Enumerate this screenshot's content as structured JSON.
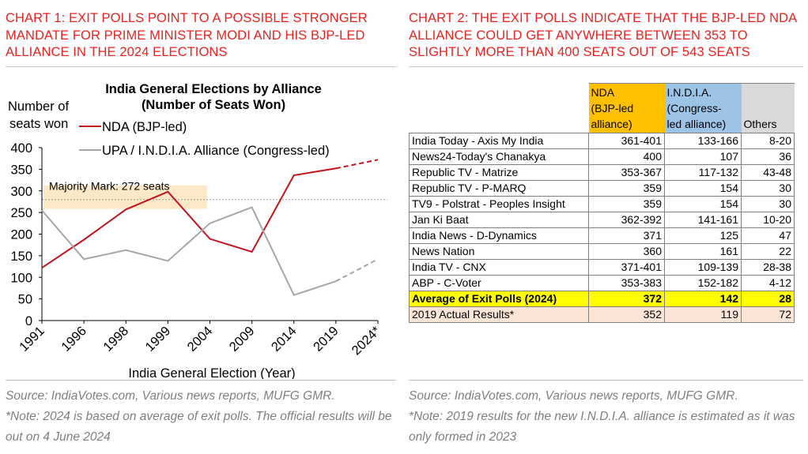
{
  "left": {
    "heading": "CHART 1: EXIT POLLS POINT TO A POSSIBLE STRONGER MANDATE FOR PRIME MINISTER MODI AND HIS BJP-LED ALLIANCE IN THE 2024 ELECTIONS",
    "footer_source": "Source: IndiaVotes.com, Various news reports, MUFG GMR.",
    "footer_note": "*Note: 2024 is based on average of exit polls. The official results will be out on 4 June 2024"
  },
  "right": {
    "heading": "CHART 2: THE EXIT POLLS INDICATE THAT THE BJP-LED NDA ALLIANCE COULD GET ANYWHERE BETWEEN 353 TO SLIGHTLY MORE THAN 400 SEATS OUT OF 543 SEATS",
    "footer_source": "Source: IndiaVotes.com, Various news reports, MUFG GMR.",
    "footer_note": "*Note: 2019 results for the new I.N.D.I.A. alliance is estimated as it was only formed in 2023"
  },
  "colors": {
    "heading_red": "#e8231f",
    "nda_line": "#c0141b",
    "upa_line": "#a6a6a6",
    "majority_band": "#fde9c7",
    "nda_header": "#ffc000",
    "india_header": "#9dc3e6",
    "others_header": "#d9d9d9",
    "average_row": "#ffff00",
    "actual_row": "#fbe5d6"
  },
  "chart_data": [
    {
      "type": "line",
      "title": "India General Elections by Alliance (Number of Seats Won)",
      "title_lines": [
        "India General Elections by Alliance",
        "(Number of Seats Won)"
      ],
      "ylabel_lines": [
        "Number of",
        "seats won"
      ],
      "xlabel": "India General Election (Year)",
      "categories": [
        "1991",
        "1996",
        "1998",
        "1999",
        "2004",
        "2009",
        "2014",
        "2019",
        "2024*"
      ],
      "yticks": [
        "0",
        "50",
        "100",
        "150",
        "200",
        "250",
        "300",
        "350",
        "400"
      ],
      "ylim": [
        0,
        400
      ],
      "grid": false,
      "legend_position": "top",
      "series": [
        {
          "name": "NDA (BJP-led)",
          "values": [
            122,
            187,
            257,
            298,
            189,
            159,
            336,
            352,
            372
          ],
          "color": "#c0141b",
          "dashed_last_segment": true
        },
        {
          "name": "UPA / I.N.D.I.A. Alliance (Congress-led)",
          "values": [
            255,
            142,
            163,
            138,
            225,
            262,
            59,
            91,
            142
          ],
          "color": "#a6a6a6",
          "dashed_last_segment": true
        }
      ],
      "annotations": [
        {
          "text": "Majority Mark: 272 seats",
          "y": 280,
          "style": "dotted reference line"
        }
      ]
    },
    {
      "type": "table",
      "columns": [
        {
          "label_lines": [
            "",
            "",
            ""
          ]
        },
        {
          "label_lines": [
            "NDA",
            "(BJP-led",
            "alliance)"
          ]
        },
        {
          "label_lines": [
            "I.N.D.I.A.",
            "(Congress-",
            "led alliance)"
          ]
        },
        {
          "label_lines": [
            "Others"
          ]
        }
      ],
      "rows": [
        {
          "source": "India Today - Axis My India",
          "nda": "361-401",
          "india": "133-166",
          "others": "8-20"
        },
        {
          "source": "News24-Today's Chanakya",
          "nda": "400",
          "india": "107",
          "others": "36"
        },
        {
          "source": "Republic TV - Matrize",
          "nda": "353-367",
          "india": "117-132",
          "others": "43-48"
        },
        {
          "source": "Republic TV - P-MARQ",
          "nda": "359",
          "india": "154",
          "others": "30"
        },
        {
          "source": "TV9 - Polstrat - Peoples Insight",
          "nda": "359",
          "india": "154",
          "others": "30"
        },
        {
          "source": "Jan Ki Baat",
          "nda": "362-392",
          "india": "141-161",
          "others": "10-20"
        },
        {
          "source": "India News - D-Dynamics",
          "nda": "371",
          "india": "125",
          "others": "47"
        },
        {
          "source": "News Nation",
          "nda": "360",
          "india": "161",
          "others": "22"
        },
        {
          "source": "India TV - CNX",
          "nda": "371-401",
          "india": "109-139",
          "others": "28-38"
        },
        {
          "source": "ABP - C-Voter",
          "nda": "353-383",
          "india": "152-182",
          "others": "4-12"
        }
      ],
      "average_row": {
        "source": "Average of Exit Polls (2024)",
        "nda": "372",
        "india": "142",
        "others": "28"
      },
      "actual_row": {
        "source": "2019 Actual Results*",
        "nda": "352",
        "india": "119",
        "others": "72"
      }
    }
  ]
}
